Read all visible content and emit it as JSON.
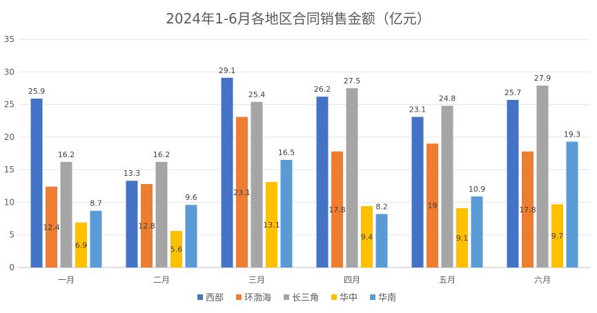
{
  "chart_data": {
    "type": "bar",
    "title": "2024年1-6月各地区合同销售金额（亿元）",
    "categories": [
      "一月",
      "二月",
      "三月",
      "四月",
      "五月",
      "六月"
    ],
    "ylim": [
      0,
      35
    ],
    "yticks": [
      0,
      5,
      10,
      15,
      20,
      25,
      30,
      35
    ],
    "grid": true,
    "legend_position": "bottom",
    "series": [
      {
        "name": "西部",
        "color": "#4472C4",
        "values": [
          25.9,
          13.3,
          29.1,
          26.2,
          23.1,
          25.7
        ],
        "label_pos": "outside"
      },
      {
        "name": "环渤海",
        "color": "#ED7D31",
        "values": [
          12.4,
          12.8,
          23.1,
          17.8,
          19,
          17.8
        ],
        "label_pos": "inside"
      },
      {
        "name": "长三角",
        "color": "#A5A5A5",
        "values": [
          16.2,
          16.2,
          25.4,
          27.5,
          24.8,
          27.9
        ],
        "label_pos": "outside"
      },
      {
        "name": "华中",
        "color": "#FFC000",
        "values": [
          6.9,
          5.6,
          13.1,
          9.4,
          9.1,
          9.7
        ],
        "label_pos": "inside"
      },
      {
        "name": "华南",
        "color": "#5B9BD5",
        "values": [
          8.7,
          9.6,
          16.5,
          8.2,
          10.9,
          19.3
        ],
        "label_pos": "outside"
      }
    ]
  }
}
